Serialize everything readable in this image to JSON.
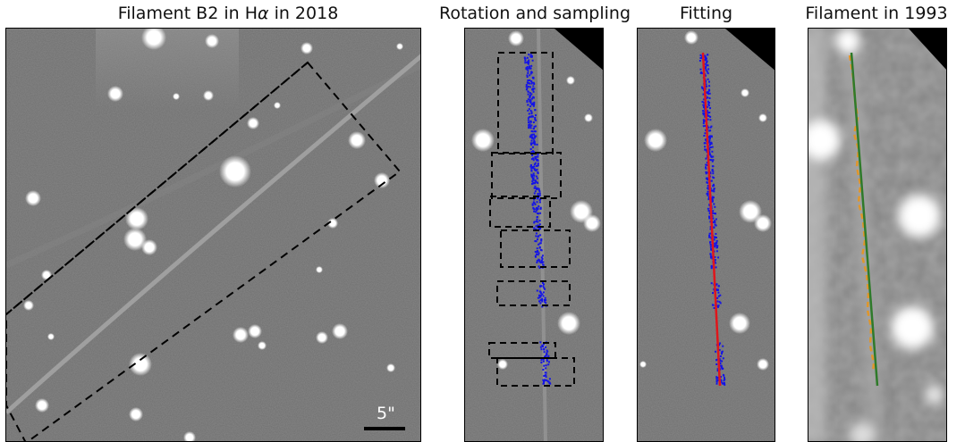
{
  "panels": [
    {
      "title": "Filament B2 in H",
      "title_symbol": "α",
      "title_suffix": " in 2018",
      "scale_label": "5\""
    },
    {
      "title": "Rotation and sampling"
    },
    {
      "title": "Fitting"
    },
    {
      "title": "Filament in 1993"
    }
  ],
  "colors": {
    "sample_points": "#1414e6",
    "fit_line": "#e0161b",
    "trace_1993": "#e0962a",
    "fit_1993": "#2f7a2a",
    "box_dash": "#000000"
  }
}
